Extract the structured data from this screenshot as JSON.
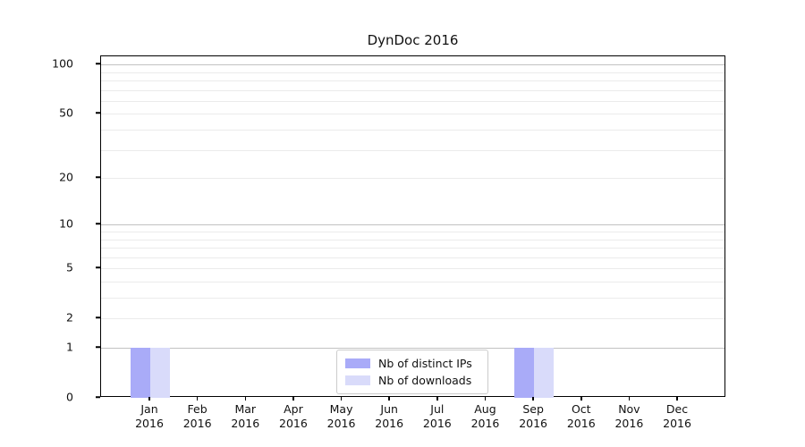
{
  "chart_data": {
    "type": "bar",
    "title": "DynDoc 2016",
    "categories": [
      "Jan 2016",
      "Feb 2016",
      "Mar 2016",
      "Apr 2016",
      "May 2016",
      "Jun 2016",
      "Jul 2016",
      "Aug 2016",
      "Sep 2016",
      "Oct 2016",
      "Nov 2016",
      "Dec 2016"
    ],
    "series": [
      {
        "name": "Nb of distinct IPs",
        "color": "#a9abf8",
        "values": [
          1,
          0,
          0,
          0,
          0,
          0,
          0,
          0,
          1,
          0,
          0,
          0
        ]
      },
      {
        "name": "Nb of downloads",
        "color": "#d9dbfa",
        "values": [
          1,
          0,
          0,
          0,
          0,
          0,
          0,
          0,
          1,
          0,
          0,
          0
        ]
      }
    ],
    "xlabel": "",
    "ylabel": "",
    "ylim": [
      0,
      100
    ],
    "y_axis": {
      "scale": "log10(value+1)",
      "tick_labels": [
        0,
        1,
        2,
        5,
        10,
        20,
        50,
        100
      ],
      "major_gridlines": [
        1,
        10,
        100
      ],
      "minor_gridlines": [
        2,
        3,
        4,
        5,
        6,
        7,
        8,
        9,
        20,
        30,
        40,
        50,
        60,
        70,
        80,
        90
      ]
    },
    "grid": "horizontal",
    "legend_position": "lower center",
    "colors": {
      "major_grid": "#c2c2c2",
      "minor_grid": "#ebebeb",
      "spine": "#000000",
      "background": "#ffffff"
    }
  }
}
